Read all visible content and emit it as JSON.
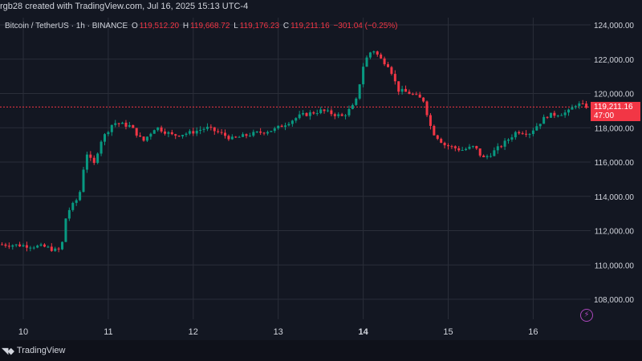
{
  "header": {
    "credit": "rgb28 created with TradingView.com, Jul 16, 2025 15:13 UTC-4"
  },
  "legend": {
    "symbol": "Bitcoin / TetherUS · 1h · BINANCE",
    "o_label": "O",
    "o_value": "119,512.20",
    "h_label": "H",
    "h_value": "119,668.72",
    "l_label": "L",
    "l_value": "119,176.23",
    "c_label": "C",
    "c_value": "119,211.16",
    "change": "−301.04 (−0.25%)"
  },
  "price_tag": {
    "price": "119,211.16",
    "countdown": "47:00"
  },
  "footer": {
    "brand": "TradingView"
  },
  "colors": {
    "up": "#089981",
    "down": "#f23645",
    "background": "#131722",
    "grid": "#2a2e39"
  },
  "icons": {
    "bolt": "lightning-icon",
    "logo": "tradingview-logo-icon"
  },
  "chart_data": {
    "type": "candlestick",
    "y_ticks": [
      "124,000.00",
      "122,000.00",
      "120,000.00",
      "118,000.00",
      "116,000.00",
      "114,000.00",
      "112,000.00",
      "110,000.00",
      "108,000.00"
    ],
    "x_ticks": [
      "10",
      "11",
      "12",
      "13",
      "14",
      "15",
      "16"
    ],
    "ylim": [
      107000,
      124500
    ],
    "last_price": 119211.16,
    "anchors": [
      {
        "x": 9.75,
        "y": 111200
      },
      {
        "x": 10.0,
        "y": 111150
      },
      {
        "x": 10.3,
        "y": 111050
      },
      {
        "x": 10.45,
        "y": 110800
      },
      {
        "x": 10.5,
        "y": 111300
      },
      {
        "x": 10.55,
        "y": 113000
      },
      {
        "x": 10.7,
        "y": 114000
      },
      {
        "x": 10.78,
        "y": 116600
      },
      {
        "x": 10.87,
        "y": 115800
      },
      {
        "x": 10.95,
        "y": 117200
      },
      {
        "x": 11.1,
        "y": 118300
      },
      {
        "x": 11.3,
        "y": 118100
      },
      {
        "x": 11.45,
        "y": 117200
      },
      {
        "x": 11.6,
        "y": 118050
      },
      {
        "x": 11.8,
        "y": 117550
      },
      {
        "x": 12.0,
        "y": 117700
      },
      {
        "x": 12.2,
        "y": 118000
      },
      {
        "x": 12.35,
        "y": 117700
      },
      {
        "x": 12.5,
        "y": 117350
      },
      {
        "x": 12.7,
        "y": 117600
      },
      {
        "x": 13.0,
        "y": 117900
      },
      {
        "x": 13.3,
        "y": 118700
      },
      {
        "x": 13.55,
        "y": 119000
      },
      {
        "x": 13.8,
        "y": 118650
      },
      {
        "x": 13.95,
        "y": 119400
      },
      {
        "x": 14.05,
        "y": 121800
      },
      {
        "x": 14.15,
        "y": 122600
      },
      {
        "x": 14.25,
        "y": 122000
      },
      {
        "x": 14.35,
        "y": 121600
      },
      {
        "x": 14.45,
        "y": 120200
      },
      {
        "x": 14.6,
        "y": 120000
      },
      {
        "x": 14.75,
        "y": 119600
      },
      {
        "x": 14.85,
        "y": 117800
      },
      {
        "x": 15.0,
        "y": 117000
      },
      {
        "x": 15.2,
        "y": 116700
      },
      {
        "x": 15.35,
        "y": 116900
      },
      {
        "x": 15.45,
        "y": 116200
      },
      {
        "x": 15.55,
        "y": 116500
      },
      {
        "x": 15.7,
        "y": 117100
      },
      {
        "x": 15.85,
        "y": 117800
      },
      {
        "x": 16.0,
        "y": 117700
      },
      {
        "x": 16.2,
        "y": 118700
      },
      {
        "x": 16.45,
        "y": 118900
      },
      {
        "x": 16.55,
        "y": 119400
      },
      {
        "x": 16.65,
        "y": 119250
      }
    ]
  }
}
